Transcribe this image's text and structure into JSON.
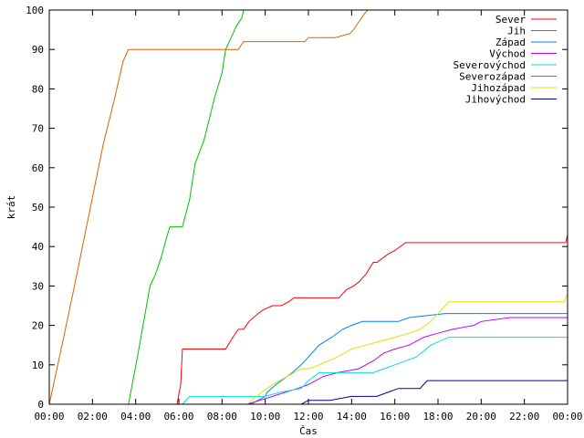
{
  "chart_data": {
    "type": "line",
    "title": "",
    "xlabel": "Čas",
    "ylabel": "krát",
    "xlim": [
      "00:00",
      "24:00"
    ],
    "ylim": [
      0,
      100
    ],
    "grid": false,
    "legend_placement": "top-right",
    "x_tick_labels": [
      "00:00",
      "02:00",
      "04:00",
      "06:00",
      "08:00",
      "10:00",
      "12:00",
      "14:00",
      "16:00",
      "18:00",
      "20:00",
      "22:00",
      "00:00"
    ],
    "y_tick_labels": [
      "0",
      "10",
      "20",
      "30",
      "40",
      "50",
      "60",
      "70",
      "80",
      "90",
      "100"
    ],
    "series": [
      {
        "name": "Sever",
        "color": "#ff0000",
        "x": [
          "05:55",
          "06:05",
          "06:10",
          "08:10",
          "08:30",
          "08:45",
          "09:00",
          "09:15",
          "09:40",
          "09:55",
          "10:20",
          "10:45",
          "11:05",
          "11:20",
          "12:00",
          "12:40",
          "13:25",
          "13:45",
          "14:05",
          "14:20",
          "14:40",
          "15:00",
          "15:10",
          "15:40",
          "16:00",
          "16:30",
          "18:00",
          "20:00",
          "22:00",
          "23:55",
          "24:00"
        ],
        "y": [
          0,
          5,
          14,
          14,
          17,
          19,
          19,
          21,
          23,
          24,
          25,
          25,
          26,
          27,
          27,
          27,
          27,
          29,
          30,
          31,
          33,
          36,
          36,
          38,
          39,
          41,
          41,
          41,
          41,
          41,
          43
        ]
      },
      {
        "name": "Jih",
        "color": "#00c000",
        "x": [
          "03:40",
          "04:05",
          "04:40",
          "04:55",
          "05:10",
          "05:25",
          "05:35",
          "05:50",
          "06:00",
          "06:10",
          "06:30",
          "06:45",
          "07:10",
          "07:40",
          "08:00",
          "08:10",
          "08:30",
          "08:40",
          "08:55",
          "09:00"
        ],
        "y": [
          0,
          12,
          30,
          33,
          37,
          42,
          45,
          45,
          45,
          45,
          52,
          61,
          67,
          78,
          84,
          90,
          94,
          96,
          98,
          100
        ]
      },
      {
        "name": "Západ",
        "color": "#0080ff",
        "x": [
          "09:20",
          "10:00",
          "10:05",
          "10:30",
          "11:00",
          "11:15",
          "11:40",
          "12:00",
          "12:10",
          "12:30",
          "13:05",
          "13:35",
          "14:00",
          "14:30",
          "15:20",
          "16:10",
          "16:40",
          "18:20",
          "20:00",
          "22:00",
          "24:00"
        ],
        "y": [
          0,
          2,
          3,
          5,
          7,
          8,
          10,
          12,
          13,
          15,
          17,
          19,
          20,
          21,
          21,
          21,
          22,
          23,
          23,
          23,
          23
        ]
      },
      {
        "name": "Východ",
        "color": "#c000ff",
        "x": [
          "09:10",
          "09:45",
          "10:20",
          "11:30",
          "12:00",
          "12:40",
          "13:20",
          "14:20",
          "15:00",
          "15:30",
          "16:00",
          "16:40",
          "17:20",
          "18:00",
          "18:40",
          "19:40",
          "20:00",
          "21:20",
          "22:00",
          "24:00"
        ],
        "y": [
          0,
          1,
          2,
          4,
          5,
          7,
          8,
          9,
          11,
          13,
          14,
          15,
          17,
          18,
          19,
          20,
          21,
          22,
          22,
          22
        ]
      },
      {
        "name": "Severovýchod",
        "color": "#00e0e0",
        "x": [
          "06:10",
          "06:30",
          "08:00",
          "09:00",
          "10:00",
          "10:40",
          "11:40",
          "12:00",
          "12:30",
          "13:00",
          "14:00",
          "15:00",
          "15:30",
          "16:00",
          "17:00",
          "17:40",
          "18:30",
          "19:00",
          "20:00",
          "22:00",
          "24:00"
        ],
        "y": [
          0,
          2,
          2,
          2,
          2,
          3,
          4,
          6,
          8,
          8,
          8,
          8,
          9,
          10,
          12,
          15,
          17,
          17,
          17,
          17,
          17
        ]
      },
      {
        "name": "Severozápad",
        "color": "#e06000",
        "x": [
          "00:00",
          "00:40",
          "01:10",
          "01:50",
          "02:30",
          "03:00",
          "03:25",
          "03:40",
          "04:00",
          "05:30",
          "07:00",
          "08:45",
          "09:00",
          "10:00",
          "11:00",
          "11:50",
          "12:00",
          "13:15",
          "13:55",
          "14:05",
          "14:20",
          "14:35",
          "14:45",
          "16:00",
          "24:00"
        ],
        "y": [
          0,
          17,
          30,
          48,
          66,
          77,
          87,
          90,
          90,
          90,
          90,
          90,
          92,
          92,
          92,
          92,
          93,
          93,
          94,
          95,
          97,
          99,
          100,
          100,
          100
        ]
      },
      {
        "name": "Jihozápad",
        "color": "#e0e000",
        "x": [
          "09:10",
          "09:50",
          "10:20",
          "11:00",
          "11:40",
          "12:00",
          "12:30",
          "13:20",
          "14:00",
          "14:40",
          "15:20",
          "16:00",
          "16:40",
          "17:10",
          "17:40",
          "18:10",
          "18:30",
          "20:00",
          "22:00",
          "23:50",
          "24:00"
        ],
        "y": [
          0,
          3,
          5,
          7,
          9,
          9,
          10,
          12,
          14,
          15,
          16,
          17,
          18,
          19,
          21,
          24,
          26,
          26,
          26,
          26,
          28
        ]
      },
      {
        "name": "Jihovýchod",
        "color": "#0000a0",
        "x": [
          "11:40",
          "12:00",
          "13:00",
          "14:00",
          "15:10",
          "15:40",
          "16:10",
          "16:40",
          "17:10",
          "17:30",
          "18:00",
          "20:00",
          "22:00",
          "24:00"
        ],
        "y": [
          0,
          1,
          1,
          2,
          2,
          3,
          4,
          4,
          4,
          6,
          6,
          6,
          6,
          6
        ]
      }
    ]
  }
}
